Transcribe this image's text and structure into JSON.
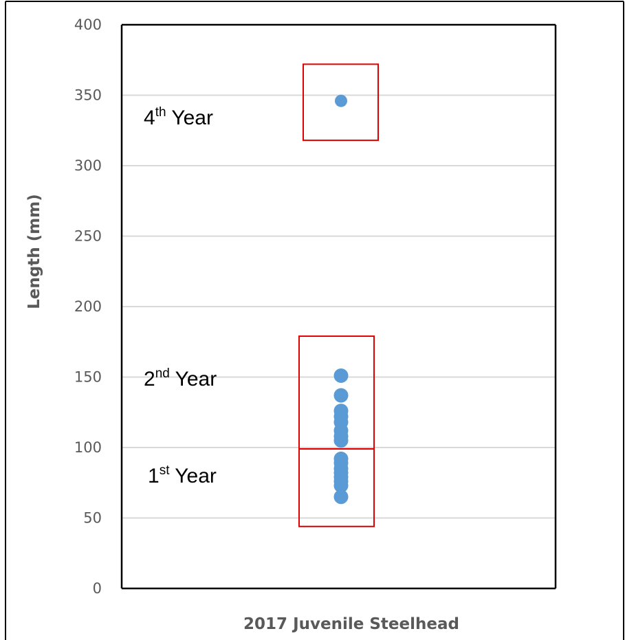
{
  "chart_data": {
    "type": "scatter",
    "title": "",
    "xlabel": "2017 Juvenile Steelhead",
    "ylabel": "Length (mm)",
    "ylim": [
      0,
      400
    ],
    "yticks": [
      "0",
      "50",
      "100",
      "150",
      "200",
      "250",
      "300",
      "350",
      "400"
    ],
    "grid": true,
    "legend": "none",
    "series": [
      {
        "values": [
          346,
          151,
          137,
          126,
          122,
          118,
          112,
          108,
          105,
          92,
          89,
          85,
          82,
          79,
          76,
          73,
          65
        ]
      }
    ],
    "annotations": [
      {
        "base": "4",
        "sup": "th",
        "rest": " Year"
      },
      {
        "base": "2",
        "sup": "nd",
        "rest": " Year"
      },
      {
        "base": "1",
        "sup": "st",
        "rest": " Year"
      }
    ],
    "highlight_boxes": [
      {
        "label": "4th Year",
        "y_range": [
          318,
          372
        ]
      },
      {
        "label": "2nd Year",
        "y_range": [
          99,
          179
        ]
      },
      {
        "label": "1st Year",
        "y_range": [
          44,
          99
        ]
      }
    ],
    "colors": {
      "points": "#5b9bd5",
      "gridlines": "#d9d9d9",
      "axis": "#000000",
      "boxes": "#e00000",
      "text": "#595959"
    }
  }
}
